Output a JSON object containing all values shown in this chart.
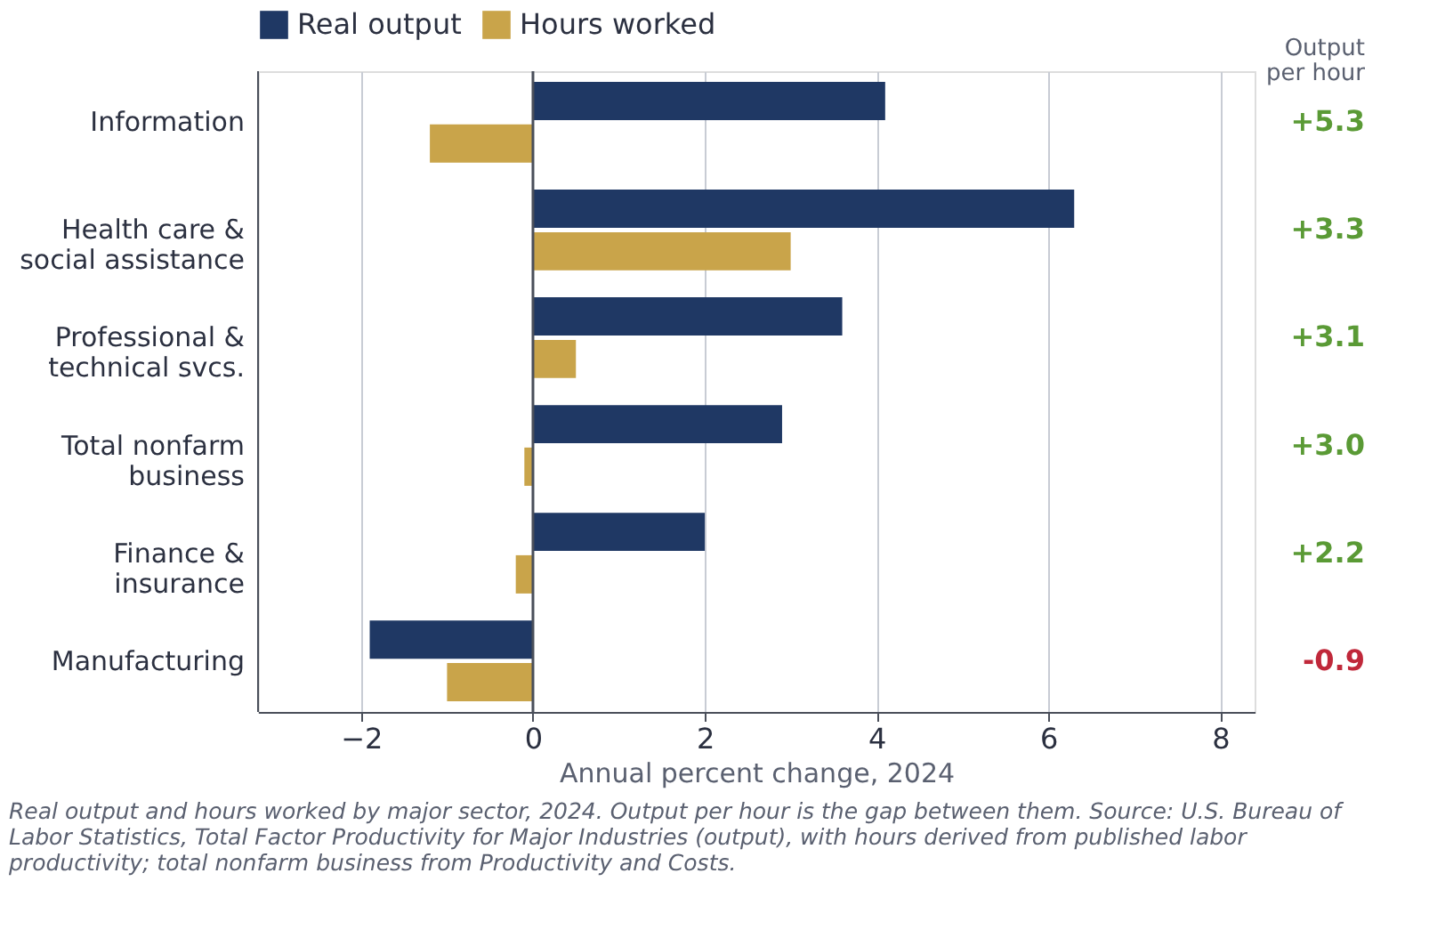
{
  "chart_data": {
    "type": "bar",
    "orientation": "horizontal",
    "categories": [
      "Information",
      "Health care &\nsocial assistance",
      "Professional &\ntechnical svcs.",
      "Total nonfarm\nbusiness",
      "Finance &\ninsurance",
      "Manufacturing"
    ],
    "series": [
      {
        "name": "Real output",
        "color": "#1f3864",
        "values": [
          4.1,
          6.3,
          3.6,
          2.9,
          2.0,
          -1.9
        ]
      },
      {
        "name": "Hours worked",
        "color": "#c9a44a",
        "values": [
          -1.2,
          3.0,
          0.5,
          -0.1,
          -0.2,
          -1.0
        ]
      }
    ],
    "xlim": [
      -3.2,
      8.4
    ],
    "xticks": [
      -2,
      0,
      2,
      4,
      6,
      8
    ],
    "xlabel": "Annual percent change, 2024",
    "grid": "x",
    "legend": "top",
    "ref_lines": [
      {
        "axis": "x",
        "value": 0,
        "color": "#4a4f5a"
      }
    ],
    "annotations": [
      "Output\nper hour",
      "+5.3",
      "+3.3",
      "+3.1",
      "+3.0",
      "+2.2",
      "-0.9",
      "Real output and hours worked by major sector, 2024. Output per hour is the gap between them. Source: U.S. Bureau of Labor Statistics, Total Factor Productivity for Major Industries (output), with hours derived from published labor productivity; total nonfarm business from Productivity and Costs."
    ]
  }
}
